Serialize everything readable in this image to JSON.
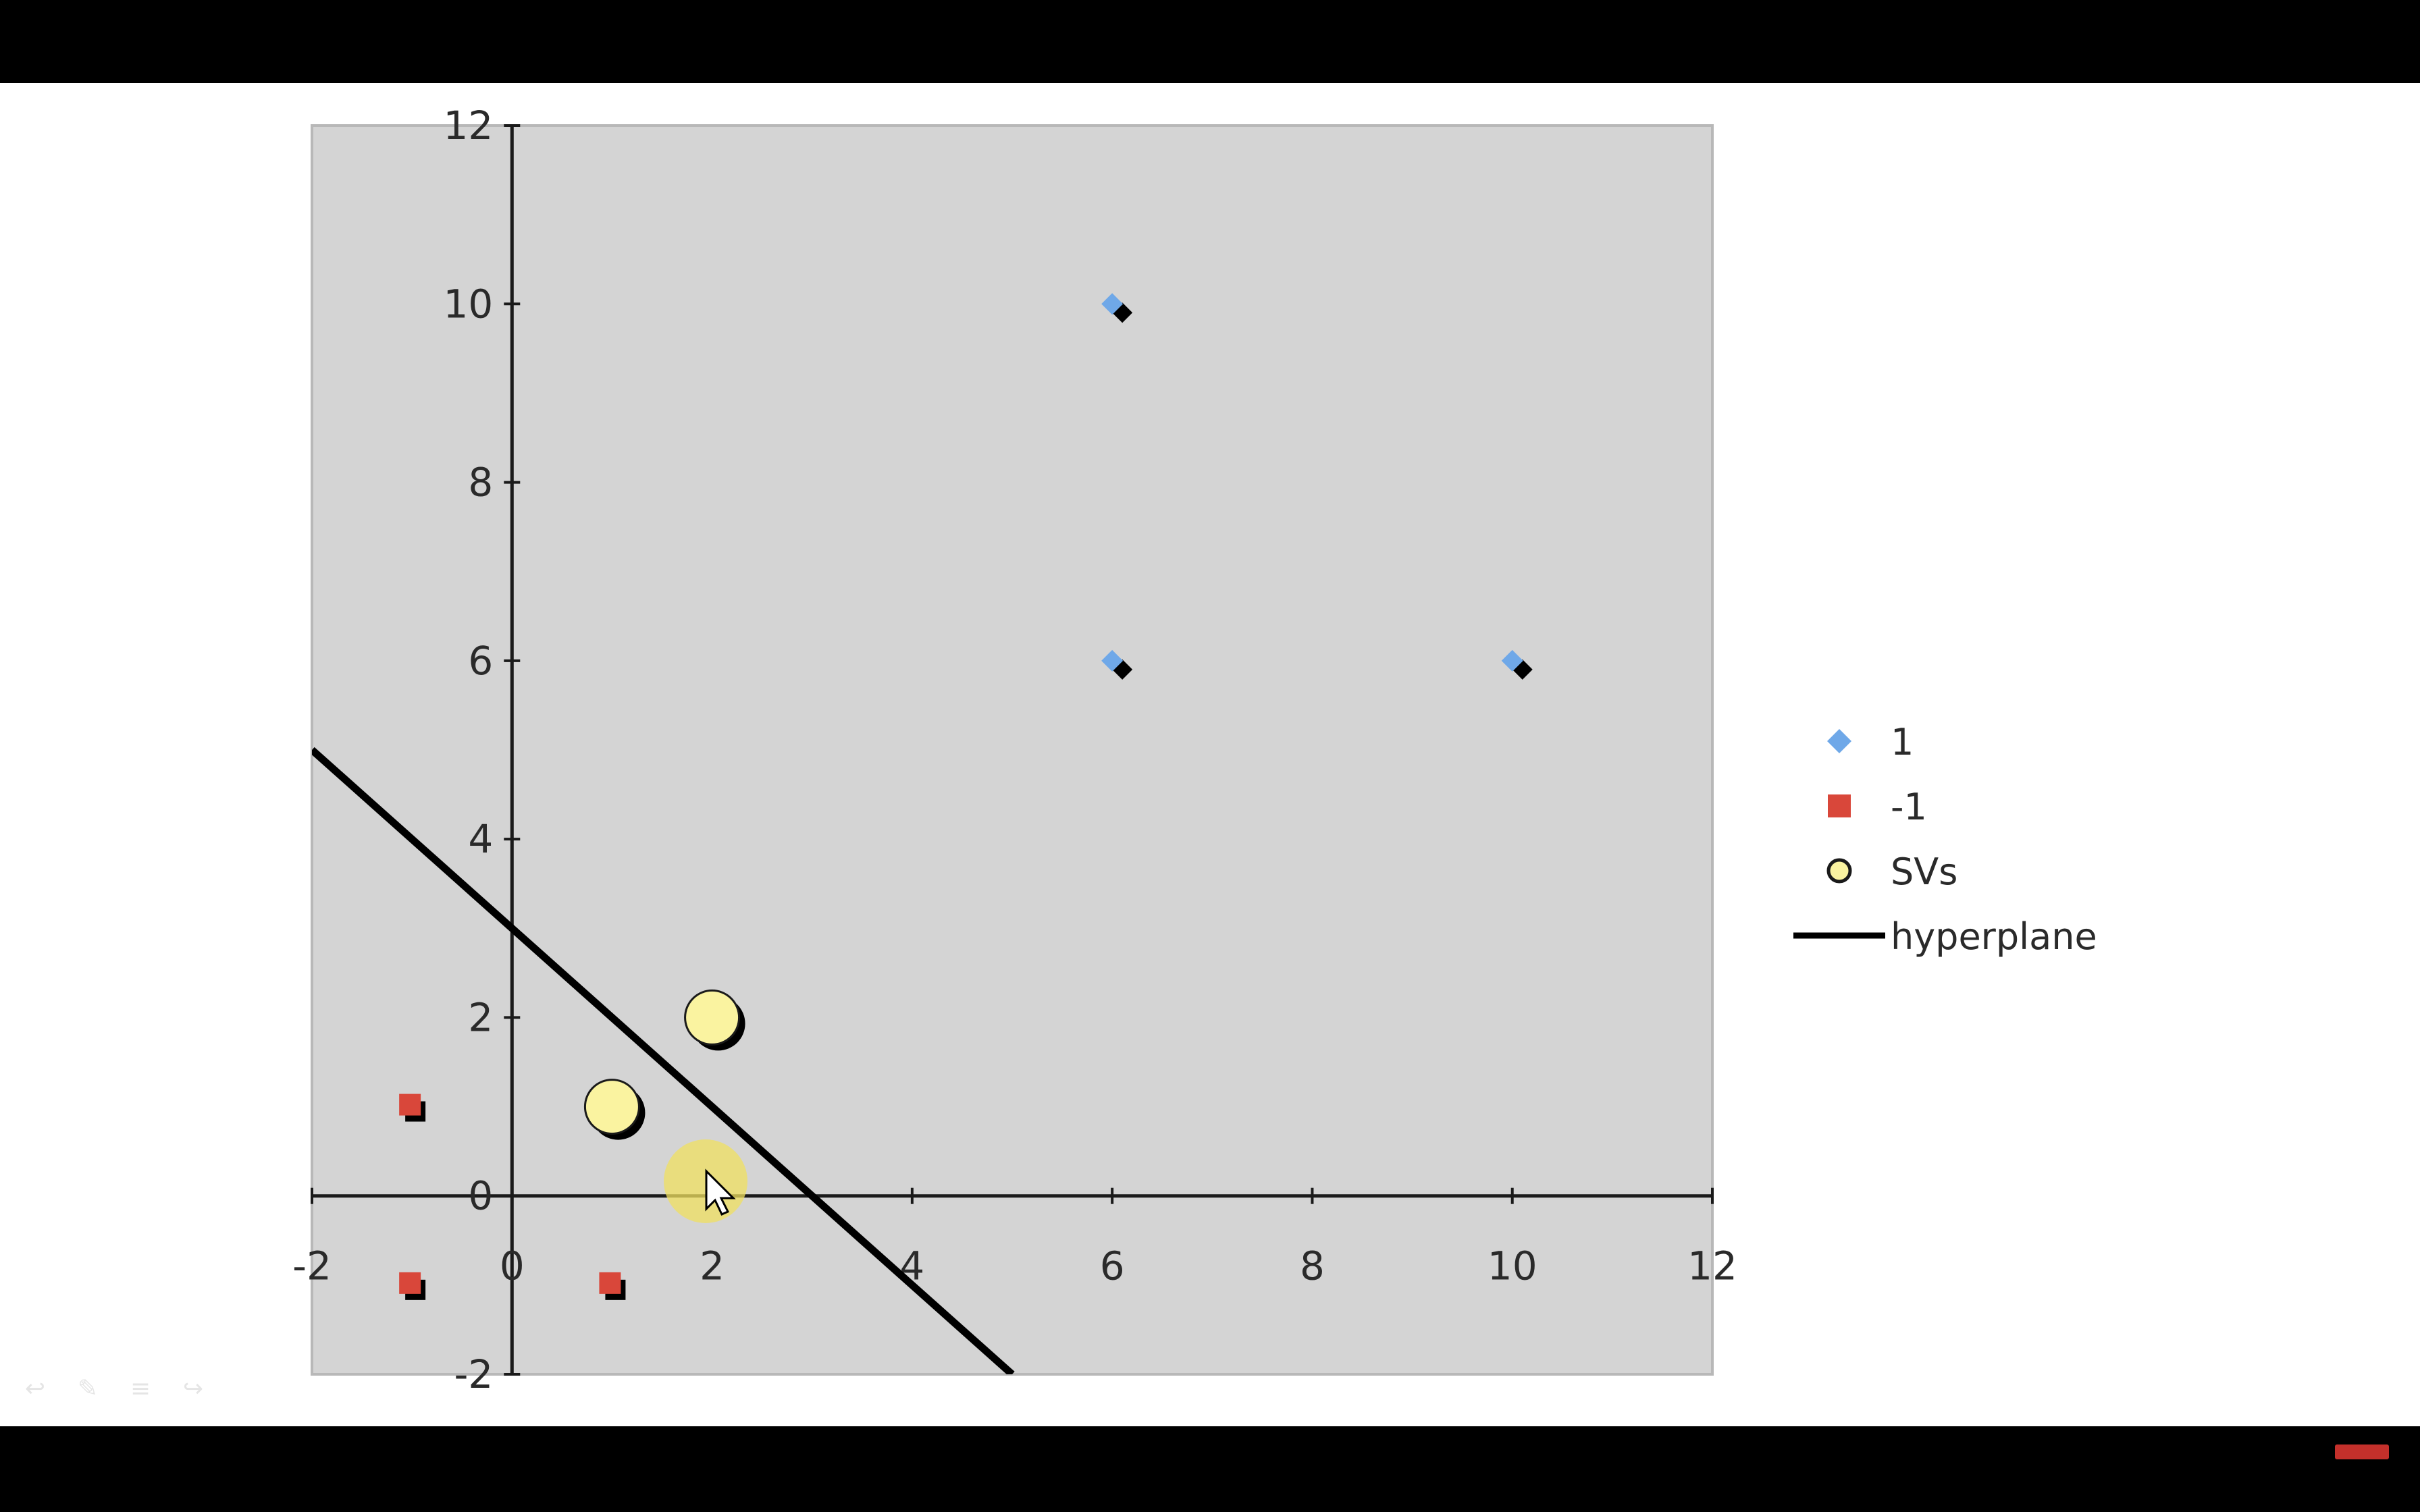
{
  "chart_data": {
    "type": "scatter",
    "title": "",
    "xlabel": "",
    "ylabel": "",
    "xlim": [
      -2,
      12
    ],
    "ylim": [
      -2,
      12
    ],
    "x_ticks": [
      -2,
      0,
      2,
      4,
      6,
      8,
      10,
      12
    ],
    "y_ticks": [
      -2,
      0,
      2,
      4,
      6,
      8,
      10,
      12
    ],
    "grid": false,
    "legend_position": "right",
    "plot_background": "#d4d4d4",
    "series": [
      {
        "name": "1",
        "marker": "diamond",
        "color": "#6fa8e8",
        "points": [
          [
            6,
            10
          ],
          [
            6,
            6
          ],
          [
            10,
            6
          ]
        ]
      },
      {
        "name": "-1",
        "marker": "square",
        "color": "#d9473a",
        "points": [
          [
            -1,
            1
          ],
          [
            -1,
            -1
          ],
          [
            1,
            -1
          ]
        ]
      },
      {
        "name": "SVs",
        "marker": "circle",
        "color": "#faf3a0",
        "points": [
          [
            1,
            1
          ],
          [
            2,
            2
          ]
        ]
      },
      {
        "name": "hyperplane",
        "marker": "line",
        "color": "#000000",
        "points": [
          [
            -2,
            5
          ],
          [
            5,
            -2
          ]
        ]
      }
    ]
  },
  "icons": {
    "cursor": "mouse-pointer-icon",
    "cursor_highlight_color": "#f0e060",
    "controls": [
      "back-arrow-icon",
      "pen-icon",
      "menu-icon",
      "forward-arrow-icon"
    ],
    "subscribe_badge": "youtube-subscribe-icon"
  }
}
